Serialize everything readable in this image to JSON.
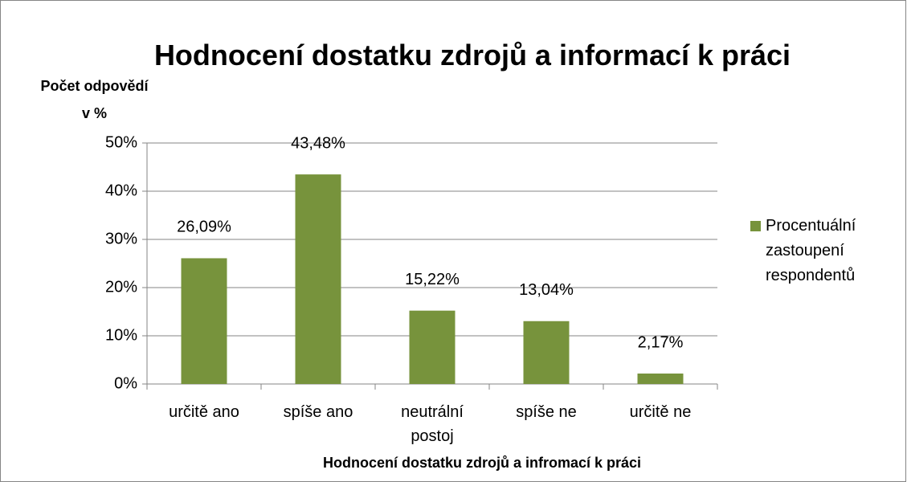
{
  "chart_data": {
    "type": "bar",
    "title": "Hodnocení dostatku zdrojů a informací k práci",
    "y_label": "Počet odpovědí v %",
    "x_label": "Hodnocení dostatku zdrojů a infromací k práci",
    "categories": [
      "určitě ano",
      "spíše ano",
      "neutrální postoj",
      "spíše ne",
      "určitě ne"
    ],
    "series": [
      {
        "name": "Procentuální zastoupení respondentů",
        "color": "#77933c",
        "values": [
          26.09,
          43.48,
          15.22,
          13.04,
          2.17
        ],
        "value_labels": [
          "26,09%",
          "43,48%",
          "15,22%",
          "13,04%",
          "2,17%"
        ]
      }
    ],
    "ylim": [
      0,
      50
    ],
    "yticks": [
      {
        "value": 0,
        "label": "0%"
      },
      {
        "value": 10,
        "label": "10%"
      },
      {
        "value": 20,
        "label": "20%"
      },
      {
        "value": 30,
        "label": "30%"
      },
      {
        "value": 40,
        "label": "40%"
      },
      {
        "value": 50,
        "label": "50%"
      }
    ],
    "grid": true,
    "legend": "right"
  }
}
